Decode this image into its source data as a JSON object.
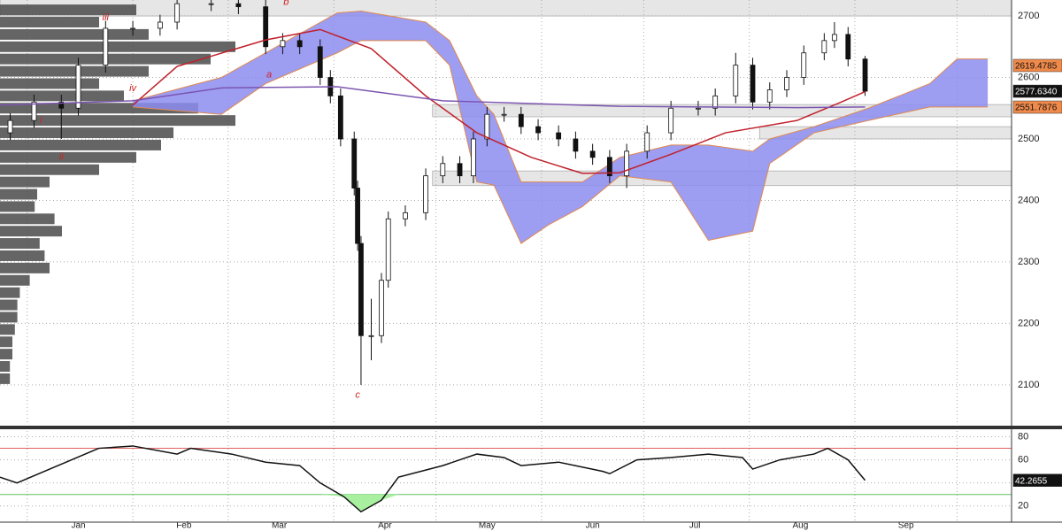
{
  "chart_data": [
    {
      "type": "candlestick",
      "xlim": [
        -8,
        289
      ],
      "ylim": [
        2035,
        2726
      ],
      "yticks": [
        2100,
        2200,
        2300,
        2400,
        2500,
        2600,
        2700
      ],
      "grid": true,
      "xgrid": [
        0,
        31,
        59,
        90,
        120,
        151,
        181,
        212,
        243,
        273
      ],
      "up_color": "#ffffff",
      "down_color": "#111111",
      "x": [
        -5,
        2,
        10,
        15,
        23,
        31,
        39,
        44,
        54,
        62,
        70,
        75,
        80,
        86,
        89,
        92,
        96,
        97,
        98,
        101,
        104,
        106,
        111,
        117,
        122,
        127,
        131,
        135,
        140,
        145,
        150,
        156,
        161,
        166,
        171,
        176,
        182,
        189,
        197,
        202,
        208,
        213,
        218,
        223,
        228,
        234,
        237,
        241,
        246
      ],
      "open": [
        2510,
        2530,
        2560,
        2550,
        2620,
        2680,
        2680,
        2690,
        2720,
        2720,
        2715,
        2650,
        2660,
        2650,
        2600,
        2570,
        2500,
        2420,
        2330,
        2180,
        2180,
        2270,
        2370,
        2380,
        2440,
        2460,
        2440,
        2500,
        2540,
        2540,
        2520,
        2510,
        2500,
        2480,
        2470,
        2440,
        2480,
        2510,
        2550,
        2550,
        2570,
        2620,
        2560,
        2580,
        2600,
        2640,
        2660,
        2670,
        2630
      ],
      "high": [
        2542,
        2572,
        2572,
        2632,
        2692,
        2692,
        2702,
        2732,
        2732,
        2732,
        2727,
        2672,
        2672,
        2662,
        2612,
        2582,
        2512,
        2432,
        2342,
        2240,
        2282,
        2382,
        2392,
        2452,
        2472,
        2472,
        2512,
        2552,
        2552,
        2552,
        2532,
        2522,
        2512,
        2492,
        2482,
        2492,
        2522,
        2562,
        2562,
        2582,
        2640,
        2632,
        2592,
        2612,
        2652,
        2672,
        2690,
        2682,
        2635
      ],
      "low": [
        2498,
        2518,
        2500,
        2538,
        2608,
        2668,
        2668,
        2678,
        2708,
        2703,
        2638,
        2638,
        2638,
        2588,
        2558,
        2488,
        2408,
        2318,
        2100,
        2140,
        2168,
        2258,
        2358,
        2368,
        2428,
        2428,
        2428,
        2488,
        2528,
        2508,
        2498,
        2488,
        2468,
        2458,
        2428,
        2420,
        2468,
        2498,
        2538,
        2538,
        2558,
        2548,
        2548,
        2568,
        2588,
        2628,
        2648,
        2618,
        2570
      ],
      "close": [
        2530,
        2560,
        2550,
        2620,
        2680,
        2680,
        2690,
        2720,
        2720,
        2715,
        2650,
        2660,
        2650,
        2600,
        2570,
        2500,
        2420,
        2330,
        2180,
        2180,
        2270,
        2370,
        2380,
        2440,
        2460,
        2440,
        2500,
        2540,
        2540,
        2520,
        2510,
        2500,
        2480,
        2470,
        2440,
        2480,
        2510,
        2550,
        2550,
        2570,
        2620,
        2560,
        2580,
        2600,
        2640,
        2660,
        2670,
        2630,
        2577.634
      ],
      "lines": [
        {
          "color": "#c0202a",
          "x": [
            31,
            44,
            70,
            86,
            101,
            117,
            132,
            148,
            163,
            174,
            189,
            205,
            226,
            239,
            246
          ],
          "values": [
            2555,
            2618,
            2661,
            2678,
            2647,
            2570,
            2510,
            2470,
            2444,
            2445,
            2475,
            2510,
            2530,
            2560,
            2577
          ]
        },
        {
          "color": "#7b55b0",
          "x": [
            -8,
            31,
            57,
            91,
            122,
            174,
            226,
            246
          ],
          "values": [
            2555,
            2562,
            2583,
            2585,
            2562,
            2553,
            2551,
            2552
          ]
        }
      ],
      "cloud": {
        "color": "#8c8cf0",
        "edge_color": "#e08a50",
        "x": [
          31,
          57,
          70,
          91,
          98,
          117,
          124,
          132,
          137,
          145,
          153,
          163,
          174,
          189,
          200,
          213,
          218,
          231,
          247,
          265,
          273,
          282
        ],
        "upper": [
          2562,
          2600,
          2640,
          2705,
          2708,
          2690,
          2660,
          2570,
          2540,
          2430,
          2430,
          2430,
          2470,
          2490,
          2490,
          2480,
          2500,
          2520,
          2550,
          2590,
          2630,
          2630
        ],
        "lower": [
          2552,
          2540,
          2590,
          2640,
          2660,
          2660,
          2620,
          2430,
          2425,
          2330,
          2360,
          2390,
          2440,
          2430,
          2335,
          2350,
          2460,
          2510,
          2530,
          2552,
          2552,
          2552
        ]
      },
      "zones": [
        {
          "from": -8,
          "low": 2700,
          "high": 2730
        },
        {
          "from": 119,
          "low": 2536,
          "high": 2556
        },
        {
          "from": 215,
          "low": 2500,
          "high": 2520
        },
        {
          "from": 119,
          "low": 2424,
          "high": 2448
        }
      ],
      "volume_profile": {
        "color": "#4a4a4a",
        "prices": [
          2110,
          2130,
          2150,
          2170,
          2190,
          2210,
          2230,
          2250,
          2270,
          2290,
          2310,
          2330,
          2350,
          2370,
          2390,
          2410,
          2430,
          2450,
          2470,
          2490,
          2510,
          2530,
          2550,
          2570,
          2590,
          2610,
          2630,
          2650,
          2670,
          2690,
          2710
        ],
        "values": [
          4,
          4,
          5,
          5,
          6,
          7,
          7,
          8,
          12,
          20,
          18,
          16,
          25,
          22,
          14,
          15,
          20,
          40,
          55,
          65,
          70,
          95,
          80,
          50,
          40,
          60,
          85,
          95,
          60,
          40,
          55
        ]
      },
      "price_tags": [
        {
          "value": 2619.4785,
          "color": "#f08a4b"
        },
        {
          "value": 2577.634,
          "label": "2577.6340",
          "color": "#111111"
        },
        {
          "value": 2551.7876,
          "color": "#f08a4b"
        }
      ],
      "annotations": [
        {
          "text": "b",
          "x": 76,
          "y": 2722
        },
        {
          "text": "a",
          "x": 71,
          "y": 2604
        },
        {
          "text": "c",
          "x": 97,
          "y": 2083
        },
        {
          "text": "iii",
          "x": 23,
          "y": 2697
        },
        {
          "text": "iv",
          "x": 31,
          "y": 2582
        },
        {
          "text": "ii",
          "x": 10,
          "y": 2470
        },
        {
          "text": "i",
          "x": 4,
          "y": 2530
        }
      ]
    },
    {
      "type": "line",
      "xlim": [
        -8,
        289
      ],
      "ylim": [
        6,
        85
      ],
      "yticks": [
        20,
        40,
        60,
        80
      ],
      "grid": true,
      "xgrid": [
        0,
        31,
        59,
        90,
        120,
        151,
        181,
        212,
        243,
        273
      ],
      "xticks": [
        {
          "value": 15,
          "label": "Jan"
        },
        {
          "value": 46,
          "label": "Feb"
        },
        {
          "value": 74,
          "label": "Mar"
        },
        {
          "value": 105,
          "label": "Apr"
        },
        {
          "value": 135,
          "label": "May"
        },
        {
          "value": 166,
          "label": "Jun"
        },
        {
          "value": 196,
          "label": "Jul"
        },
        {
          "value": 227,
          "label": "Aug"
        },
        {
          "value": 258,
          "label": "Sep"
        }
      ],
      "color": "#111111",
      "x": [
        -8,
        -3,
        21,
        31,
        44,
        48,
        60,
        70,
        80,
        86,
        93,
        98,
        104,
        109,
        122,
        132,
        140,
        145,
        156,
        169,
        171,
        179,
        189,
        200,
        210,
        213,
        221,
        231,
        235,
        241,
        246
      ],
      "values": [
        45,
        40,
        70,
        72,
        65,
        70,
        65,
        58,
        55,
        40,
        28,
        15,
        25,
        45,
        55,
        65,
        62,
        55,
        58,
        50,
        48,
        60,
        62,
        65,
        62,
        52,
        60,
        65,
        70,
        60,
        42.2655
      ],
      "levels": [
        {
          "value": 70,
          "color": "#e06060"
        },
        {
          "value": 30,
          "color": "#60c060"
        }
      ],
      "price_tags": [
        {
          "value": 42.2655,
          "color": "#111111"
        }
      ]
    }
  ]
}
